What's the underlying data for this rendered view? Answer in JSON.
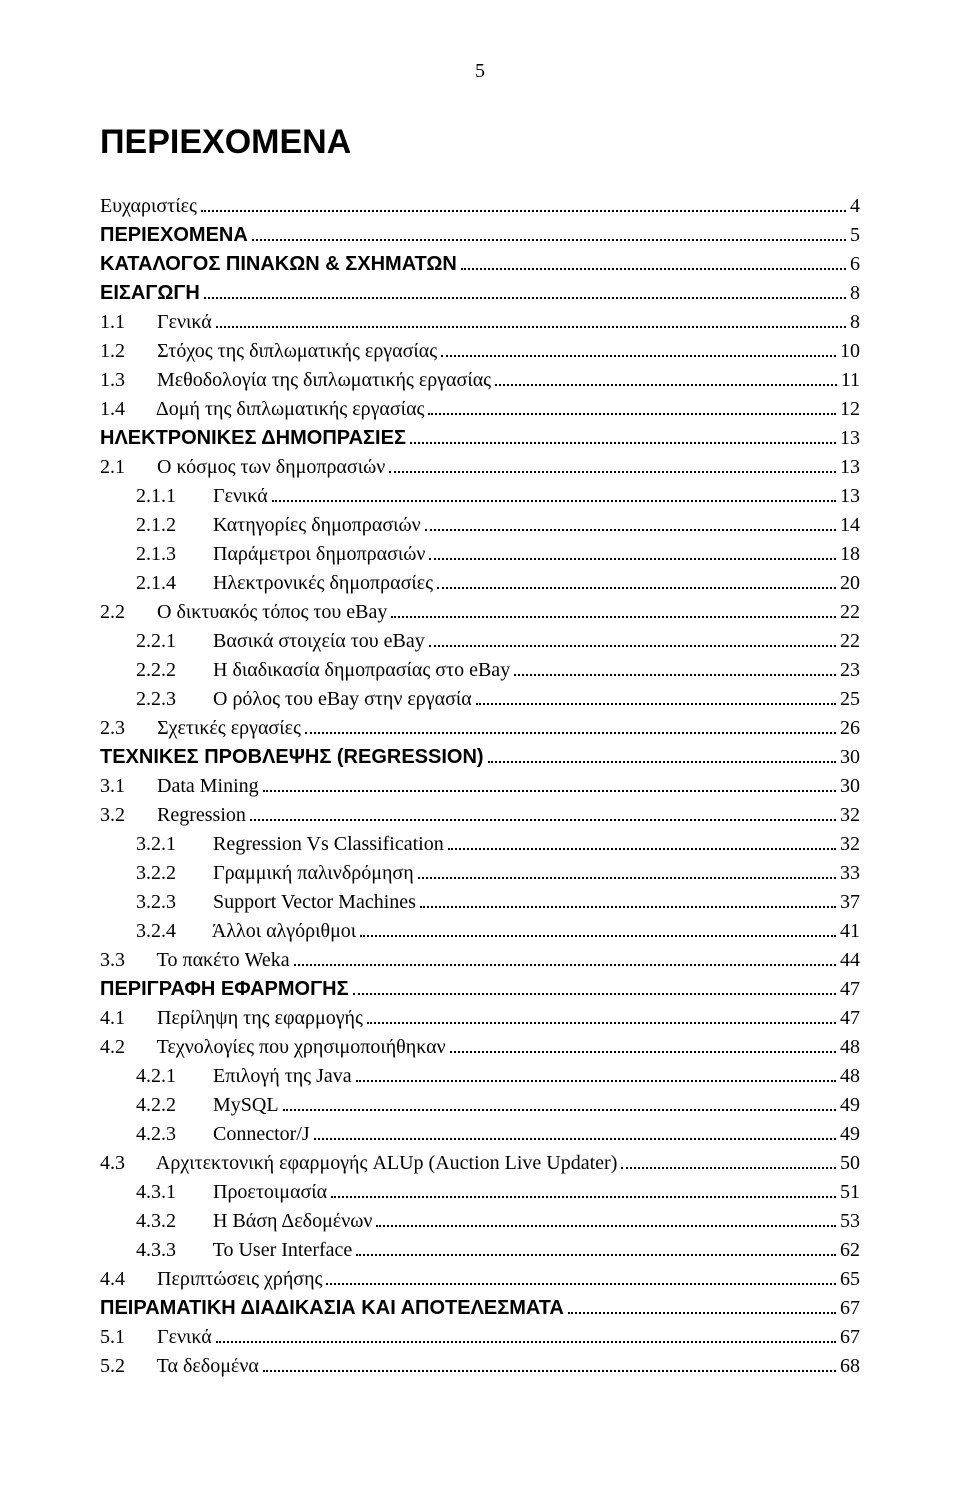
{
  "page_number": "5",
  "title": "ΠΕΡΙΕΧΟΜΕΝΑ",
  "font": {
    "body_family": "Times New Roman",
    "heading_family": "Arial",
    "body_size_pt": 15,
    "heading_size_pt": 26,
    "page_number_size_pt": 15
  },
  "colors": {
    "text": "#000000",
    "background": "#ffffff",
    "leader": "#000000"
  },
  "toc": [
    {
      "level": 1,
      "num": "",
      "text": "Ευχαριστίες",
      "page": "4"
    },
    {
      "level": 0,
      "num": "",
      "text": "ΠΕΡΙΕΧΟΜΕΝΑ",
      "page": "5"
    },
    {
      "level": 0,
      "num": "",
      "text": "ΚΑΤΑΛΟΓΟΣ ΠΙΝΑΚΩΝ & ΣΧΗΜΑΤΩΝ",
      "page": "6"
    },
    {
      "level": 0,
      "num": "",
      "text": "ΕΙΣΑΓΩΓΗ",
      "page": "8"
    },
    {
      "level": 1,
      "num": "1.1",
      "text": "Γενικά",
      "page": "8"
    },
    {
      "level": 1,
      "num": "1.2",
      "text": "Στόχος της διπλωματικής εργασίας",
      "page": "10"
    },
    {
      "level": 1,
      "num": "1.3",
      "text": "Μεθοδολογία της διπλωματικής εργασίας",
      "page": "11"
    },
    {
      "level": 1,
      "num": "1.4",
      "text": "Δομή της διπλωματικής εργασίας",
      "page": "12"
    },
    {
      "level": 0,
      "num": "",
      "text": "ΗΛΕΚΤΡΟΝΙΚΕΣ ΔΗΜΟΠΡΑΣΙΕΣ",
      "page": "13"
    },
    {
      "level": 1,
      "num": "2.1",
      "text": "Ο κόσμος των δημοπρασιών",
      "page": "13"
    },
    {
      "level": 2,
      "num": "2.1.1",
      "text": "Γενικά",
      "page": "13"
    },
    {
      "level": 2,
      "num": "2.1.2",
      "text": "Κατηγορίες δημοπρασιών",
      "page": "14"
    },
    {
      "level": 2,
      "num": "2.1.3",
      "text": "Παράμετροι δημοπρασιών",
      "page": "18"
    },
    {
      "level": 2,
      "num": "2.1.4",
      "text": "Ηλεκτρονικές δημοπρασίες",
      "page": "20"
    },
    {
      "level": 1,
      "num": "2.2",
      "text": "Ο δικτυακός τόπος του eBay",
      "page": "22"
    },
    {
      "level": 2,
      "num": "2.2.1",
      "text": "Βασικά στοιχεία του eBay",
      "page": "22"
    },
    {
      "level": 2,
      "num": "2.2.2",
      "text": "Η διαδικασία δημοπρασίας στο eBay",
      "page": "23"
    },
    {
      "level": 2,
      "num": "2.2.3",
      "text": "Ο ρόλος του eBay στην εργασία",
      "page": "25"
    },
    {
      "level": 1,
      "num": "2.3",
      "text": "Σχετικές εργασίες",
      "page": "26"
    },
    {
      "level": 0,
      "num": "",
      "text": "ΤΕΧΝΙΚΕΣ ΠΡΟΒΛΕΨΗΣ (REGRESSION)",
      "page": "30"
    },
    {
      "level": 1,
      "num": "3.1",
      "text": "Data Mining",
      "page": "30"
    },
    {
      "level": 1,
      "num": "3.2",
      "text": "Regression",
      "page": "32"
    },
    {
      "level": 2,
      "num": "3.2.1",
      "text": "Regression Vs Classification",
      "page": "32"
    },
    {
      "level": 2,
      "num": "3.2.2",
      "text": "Γραμμική παλινδρόμηση",
      "page": "33"
    },
    {
      "level": 2,
      "num": "3.2.3",
      "text": "Support Vector Machines",
      "page": "37"
    },
    {
      "level": 2,
      "num": "3.2.4",
      "text": "Άλλοι αλγόριθμοι",
      "page": "41"
    },
    {
      "level": 1,
      "num": "3.3",
      "text": "Το πακέτο Weka",
      "page": "44"
    },
    {
      "level": 0,
      "num": "",
      "text": "ΠΕΡΙΓΡΑΦΗ ΕΦΑΡΜΟΓΗΣ",
      "page": "47"
    },
    {
      "level": 1,
      "num": "4.1",
      "text": "Περίληψη της εφαρμογής",
      "page": "47"
    },
    {
      "level": 1,
      "num": "4.2",
      "text": "Τεχνολογίες που χρησιμοποιήθηκαν",
      "page": "48"
    },
    {
      "level": 2,
      "num": "4.2.1",
      "text": "Επιλογή της Java",
      "page": "48"
    },
    {
      "level": 2,
      "num": "4.2.2",
      "text": "MySQL",
      "page": "49"
    },
    {
      "level": 2,
      "num": "4.2.3",
      "text": "Connector/J",
      "page": "49"
    },
    {
      "level": 1,
      "num": "4.3",
      "text": "Αρχιτεκτονική εφαρμογής ALUp (Auction Live Updater)",
      "page": "50"
    },
    {
      "level": 2,
      "num": "4.3.1",
      "text": "Προετοιμασία",
      "page": "51"
    },
    {
      "level": 2,
      "num": "4.3.2",
      "text": "Η Βάση Δεδομένων",
      "page": "53"
    },
    {
      "level": 2,
      "num": "4.3.3",
      "text": "Το User Interface",
      "page": "62"
    },
    {
      "level": 1,
      "num": "4.4",
      "text": "Περιπτώσεις χρήσης",
      "page": "65"
    },
    {
      "level": 0,
      "num": "",
      "text": "ΠΕΙΡΑΜΑΤΙΚΗ ΔΙΑΔΙΚΑΣΙΑ ΚΑΙ ΑΠΟΤΕΛΕΣΜΑΤΑ",
      "page": "67"
    },
    {
      "level": 1,
      "num": "5.1",
      "text": "Γενικά",
      "page": "67"
    },
    {
      "level": 1,
      "num": "5.2",
      "text": "Τα δεδομένα",
      "page": "68"
    }
  ]
}
